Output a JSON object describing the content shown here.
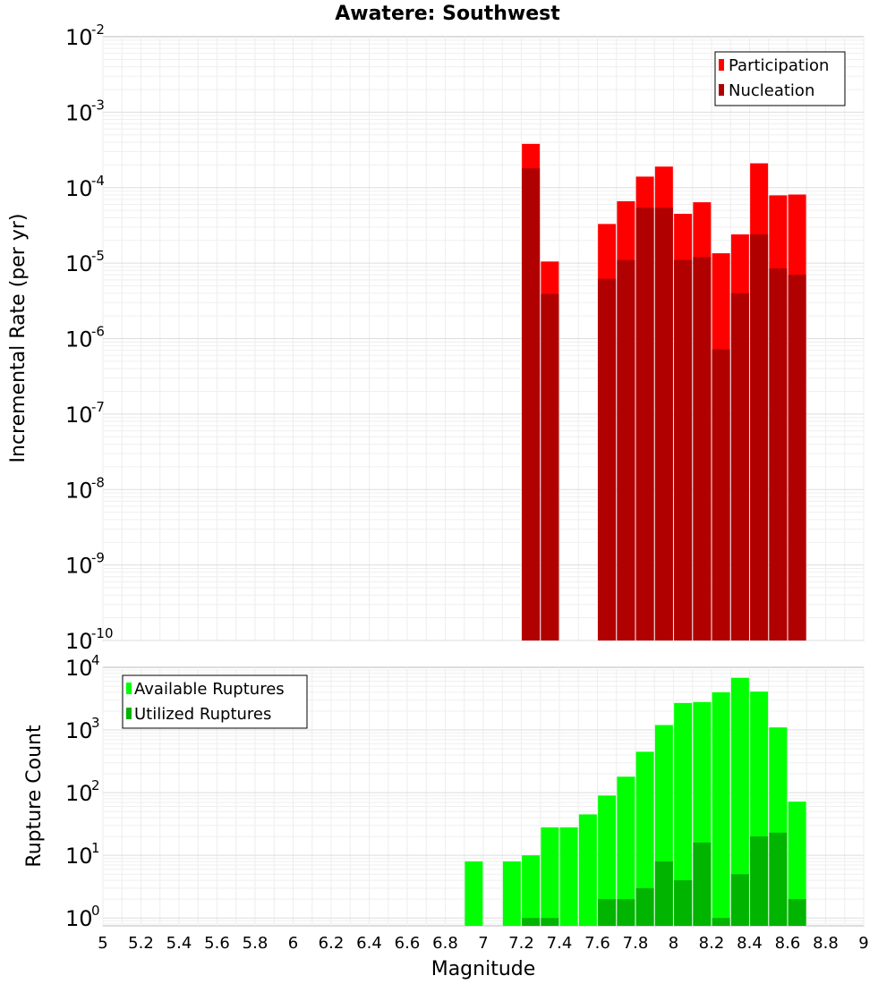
{
  "chart_data": [
    {
      "type": "bar",
      "title": "Awatere: Southwest",
      "xlabel": "",
      "ylabel": "Incremental Rate (per yr)",
      "y_scale": "log",
      "ylim": [
        1e-10,
        0.01
      ],
      "xlim": [
        5,
        9
      ],
      "y_ticks": [
        {
          "base": "10",
          "exp": "-10",
          "value": 1e-10
        },
        {
          "base": "10",
          "exp": "-9",
          "value": 1e-09
        },
        {
          "base": "10",
          "exp": "-8",
          "value": 1e-08
        },
        {
          "base": "10",
          "exp": "-7",
          "value": 1e-07
        },
        {
          "base": "10",
          "exp": "-6",
          "value": 1e-06
        },
        {
          "base": "10",
          "exp": "-5",
          "value": 1e-05
        },
        {
          "base": "10",
          "exp": "-4",
          "value": 0.0001
        },
        {
          "base": "10",
          "exp": "-3",
          "value": 0.001
        },
        {
          "base": "10",
          "exp": "-2",
          "value": 0.01
        }
      ],
      "legend": {
        "position": "top-right"
      },
      "series": [
        {
          "name": "Participation",
          "color": "#ff0000",
          "x": [
            7.25,
            7.35,
            7.65,
            7.75,
            7.85,
            7.95,
            8.05,
            8.15,
            8.25,
            8.35,
            8.45,
            8.55,
            8.65
          ],
          "values": [
            0.00038,
            1.05e-05,
            3.3e-05,
            6.6e-05,
            0.00014,
            0.00019,
            4.5e-05,
            6.4e-05,
            1.35e-05,
            2.4e-05,
            0.00021,
            7.9e-05,
            8.1e-05
          ]
        },
        {
          "name": "Nucleation",
          "color": "#b00000",
          "x": [
            7.25,
            7.35,
            7.65,
            7.75,
            7.85,
            7.95,
            8.05,
            8.15,
            8.25,
            8.35,
            8.45,
            8.55,
            8.65
          ],
          "values": [
            0.00018,
            3.9e-06,
            6.2e-06,
            1.1e-05,
            5.4e-05,
            5.4e-05,
            1.1e-05,
            1.2e-05,
            7.2e-07,
            4e-06,
            2.4e-05,
            8.5e-06,
            7e-06
          ]
        }
      ]
    },
    {
      "type": "bar",
      "title": "",
      "xlabel": "Magnitude",
      "ylabel": "Rupture Count",
      "y_scale": "log",
      "ylim": [
        0.75,
        10000
      ],
      "xlim": [
        5,
        9
      ],
      "x_ticks": [
        "5",
        "5.2",
        "5.4",
        "5.6",
        "5.8",
        "6",
        "6.2",
        "6.4",
        "6.6",
        "6.8",
        "7",
        "7.2",
        "7.4",
        "7.6",
        "7.8",
        "8",
        "8.2",
        "8.4",
        "8.6",
        "8.8",
        "9"
      ],
      "y_ticks": [
        {
          "base": "10",
          "exp": "0",
          "value": 1
        },
        {
          "base": "10",
          "exp": "1",
          "value": 10
        },
        {
          "base": "10",
          "exp": "2",
          "value": 100
        },
        {
          "base": "10",
          "exp": "3",
          "value": 1000
        },
        {
          "base": "10",
          "exp": "4",
          "value": 10000
        }
      ],
      "legend": {
        "position": "top-left"
      },
      "series": [
        {
          "name": "Available Ruptures",
          "color": "#00ff00",
          "x": [
            6.95,
            7.15,
            7.25,
            7.35,
            7.45,
            7.55,
            7.65,
            7.75,
            7.85,
            7.95,
            8.05,
            8.15,
            8.25,
            8.35,
            8.45,
            8.55,
            8.65
          ],
          "values": [
            8,
            8,
            10,
            28,
            28,
            45,
            90,
            180,
            450,
            1200,
            2700,
            2800,
            4000,
            6800,
            4100,
            1100,
            72
          ]
        },
        {
          "name": "Utilized Ruptures",
          "color": "#00b400",
          "x": [
            7.25,
            7.35,
            7.65,
            7.75,
            7.85,
            7.95,
            8.05,
            8.15,
            8.25,
            8.35,
            8.45,
            8.55,
            8.65
          ],
          "values": [
            1,
            1,
            2,
            2,
            3,
            8,
            4,
            16,
            1,
            5,
            20,
            23,
            2
          ]
        }
      ]
    }
  ]
}
